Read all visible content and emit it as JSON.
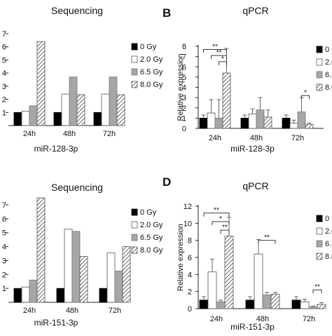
{
  "legend": [
    "0 Gy",
    "2.0 Gy",
    "6.5 Gy",
    "8.0 Gy"
  ],
  "chart_data": [
    {
      "panel_letter": "",
      "type": "bar",
      "title": "Sequencing",
      "xlabel": "miR-128-3p",
      "ylabel": "",
      "ylim": [
        0,
        7
      ],
      "yticks": [
        "7",
        "6",
        "5",
        "4",
        "3",
        "2",
        "1"
      ],
      "categories": [
        "24h",
        "48h",
        "72h"
      ],
      "series": [
        {
          "name": "0 Gy",
          "values": [
            1.0,
            1.0,
            1.0
          ]
        },
        {
          "name": "2.0 Gy",
          "values": [
            1.1,
            2.4,
            2.4
          ]
        },
        {
          "name": "6.5 Gy",
          "values": [
            1.5,
            3.7,
            3.7
          ]
        },
        {
          "name": "8.0 Gy",
          "values": [
            6.4,
            2.35,
            2.35
          ]
        }
      ]
    },
    {
      "panel_letter": "B",
      "type": "bar",
      "title": "qPCR",
      "xlabel": "miR-128-3p",
      "ylabel": "Relative expression",
      "ylim": [
        0,
        8
      ],
      "yticks": [
        "0",
        "1",
        "2",
        "3",
        "4",
        "5",
        "6",
        "7",
        "8"
      ],
      "categories": [
        "24h",
        "48h",
        "72h"
      ],
      "series": [
        {
          "name": "0 Gy",
          "values": [
            1.0,
            1.0,
            1.0
          ],
          "errors": [
            0.3,
            0.3,
            0.3
          ]
        },
        {
          "name": "2.0 Gy",
          "values": [
            1.5,
            1.4,
            0.5
          ],
          "errors": [
            1.3,
            0.5,
            0.3
          ]
        },
        {
          "name": "6.5 Gy",
          "values": [
            1.0,
            1.8,
            1.6
          ],
          "errors": [
            1.8,
            1.2,
            1.4
          ]
        },
        {
          "name": "8.0 Gy",
          "values": [
            5.4,
            1.1,
            0.4
          ],
          "errors": [
            2.4,
            0.7,
            0.1
          ]
        }
      ],
      "significance": [
        {
          "group": 0,
          "from": 0,
          "to": 3,
          "label": "**",
          "y": 7.7
        },
        {
          "group": 0,
          "from": 1,
          "to": 3,
          "label": "**",
          "y": 7.1
        },
        {
          "group": 0,
          "from": 2,
          "to": 3,
          "label": "*",
          "y": 6.5
        },
        {
          "group": 2,
          "from": 2,
          "to": 3,
          "label": "*",
          "y": 3.2
        }
      ]
    },
    {
      "panel_letter": "",
      "type": "bar",
      "title": "Sequencing",
      "xlabel": "miR-151-3p",
      "ylabel": "",
      "ylim": [
        0,
        7
      ],
      "yticks": [
        "7",
        "6",
        "5",
        "4",
        "3",
        "2",
        "1"
      ],
      "categories": [
        "24h",
        "48h",
        "72h"
      ],
      "series": [
        {
          "name": "0 Gy",
          "values": [
            1.0,
            1.0,
            1.0
          ]
        },
        {
          "name": "2.0 Gy",
          "values": [
            1.1,
            5.25,
            3.55
          ]
        },
        {
          "name": "6.5 Gy",
          "values": [
            1.6,
            5.1,
            2.25
          ]
        },
        {
          "name": "8.0 Gy",
          "values": [
            7.5,
            3.3,
            4.0
          ]
        }
      ]
    },
    {
      "panel_letter": "D",
      "type": "bar",
      "title": "qPCR",
      "xlabel": "miR-151-3p",
      "ylabel": "Relative expression",
      "ylim": [
        0,
        12
      ],
      "yticks": [
        "0",
        "2",
        "4",
        "6",
        "8",
        "10",
        "12"
      ],
      "categories": [
        "24h",
        "48h",
        "72h"
      ],
      "series": [
        {
          "name": "0 Gy",
          "values": [
            1.0,
            1.0,
            1.0
          ],
          "errors": [
            0.4,
            0.4,
            0.4
          ]
        },
        {
          "name": "2.0 Gy",
          "values": [
            4.3,
            6.4,
            0.8
          ],
          "errors": [
            1.5,
            1.7,
            0.3
          ]
        },
        {
          "name": "6.5 Gy",
          "values": [
            0.8,
            1.6,
            0.2
          ],
          "errors": [
            0.2,
            0.3,
            0.1
          ]
        },
        {
          "name": "8.0 Gy",
          "values": [
            8.5,
            1.7,
            0.5
          ],
          "errors": [
            2.2,
            0.2,
            0.2
          ]
        }
      ],
      "significance": [
        {
          "group": 0,
          "from": 0,
          "to": 3,
          "label": "**",
          "y": 11.2
        },
        {
          "group": 0,
          "from": 1,
          "to": 3,
          "label": "*",
          "y": 10.2
        },
        {
          "group": 0,
          "from": 2,
          "to": 3,
          "label": "**",
          "y": 9.2
        },
        {
          "group": 1,
          "from": 1,
          "to": 3,
          "label": "**",
          "y": 8.0
        },
        {
          "group": 2,
          "from": 2,
          "to": 3,
          "label": "**",
          "y": 2.2
        }
      ]
    }
  ]
}
